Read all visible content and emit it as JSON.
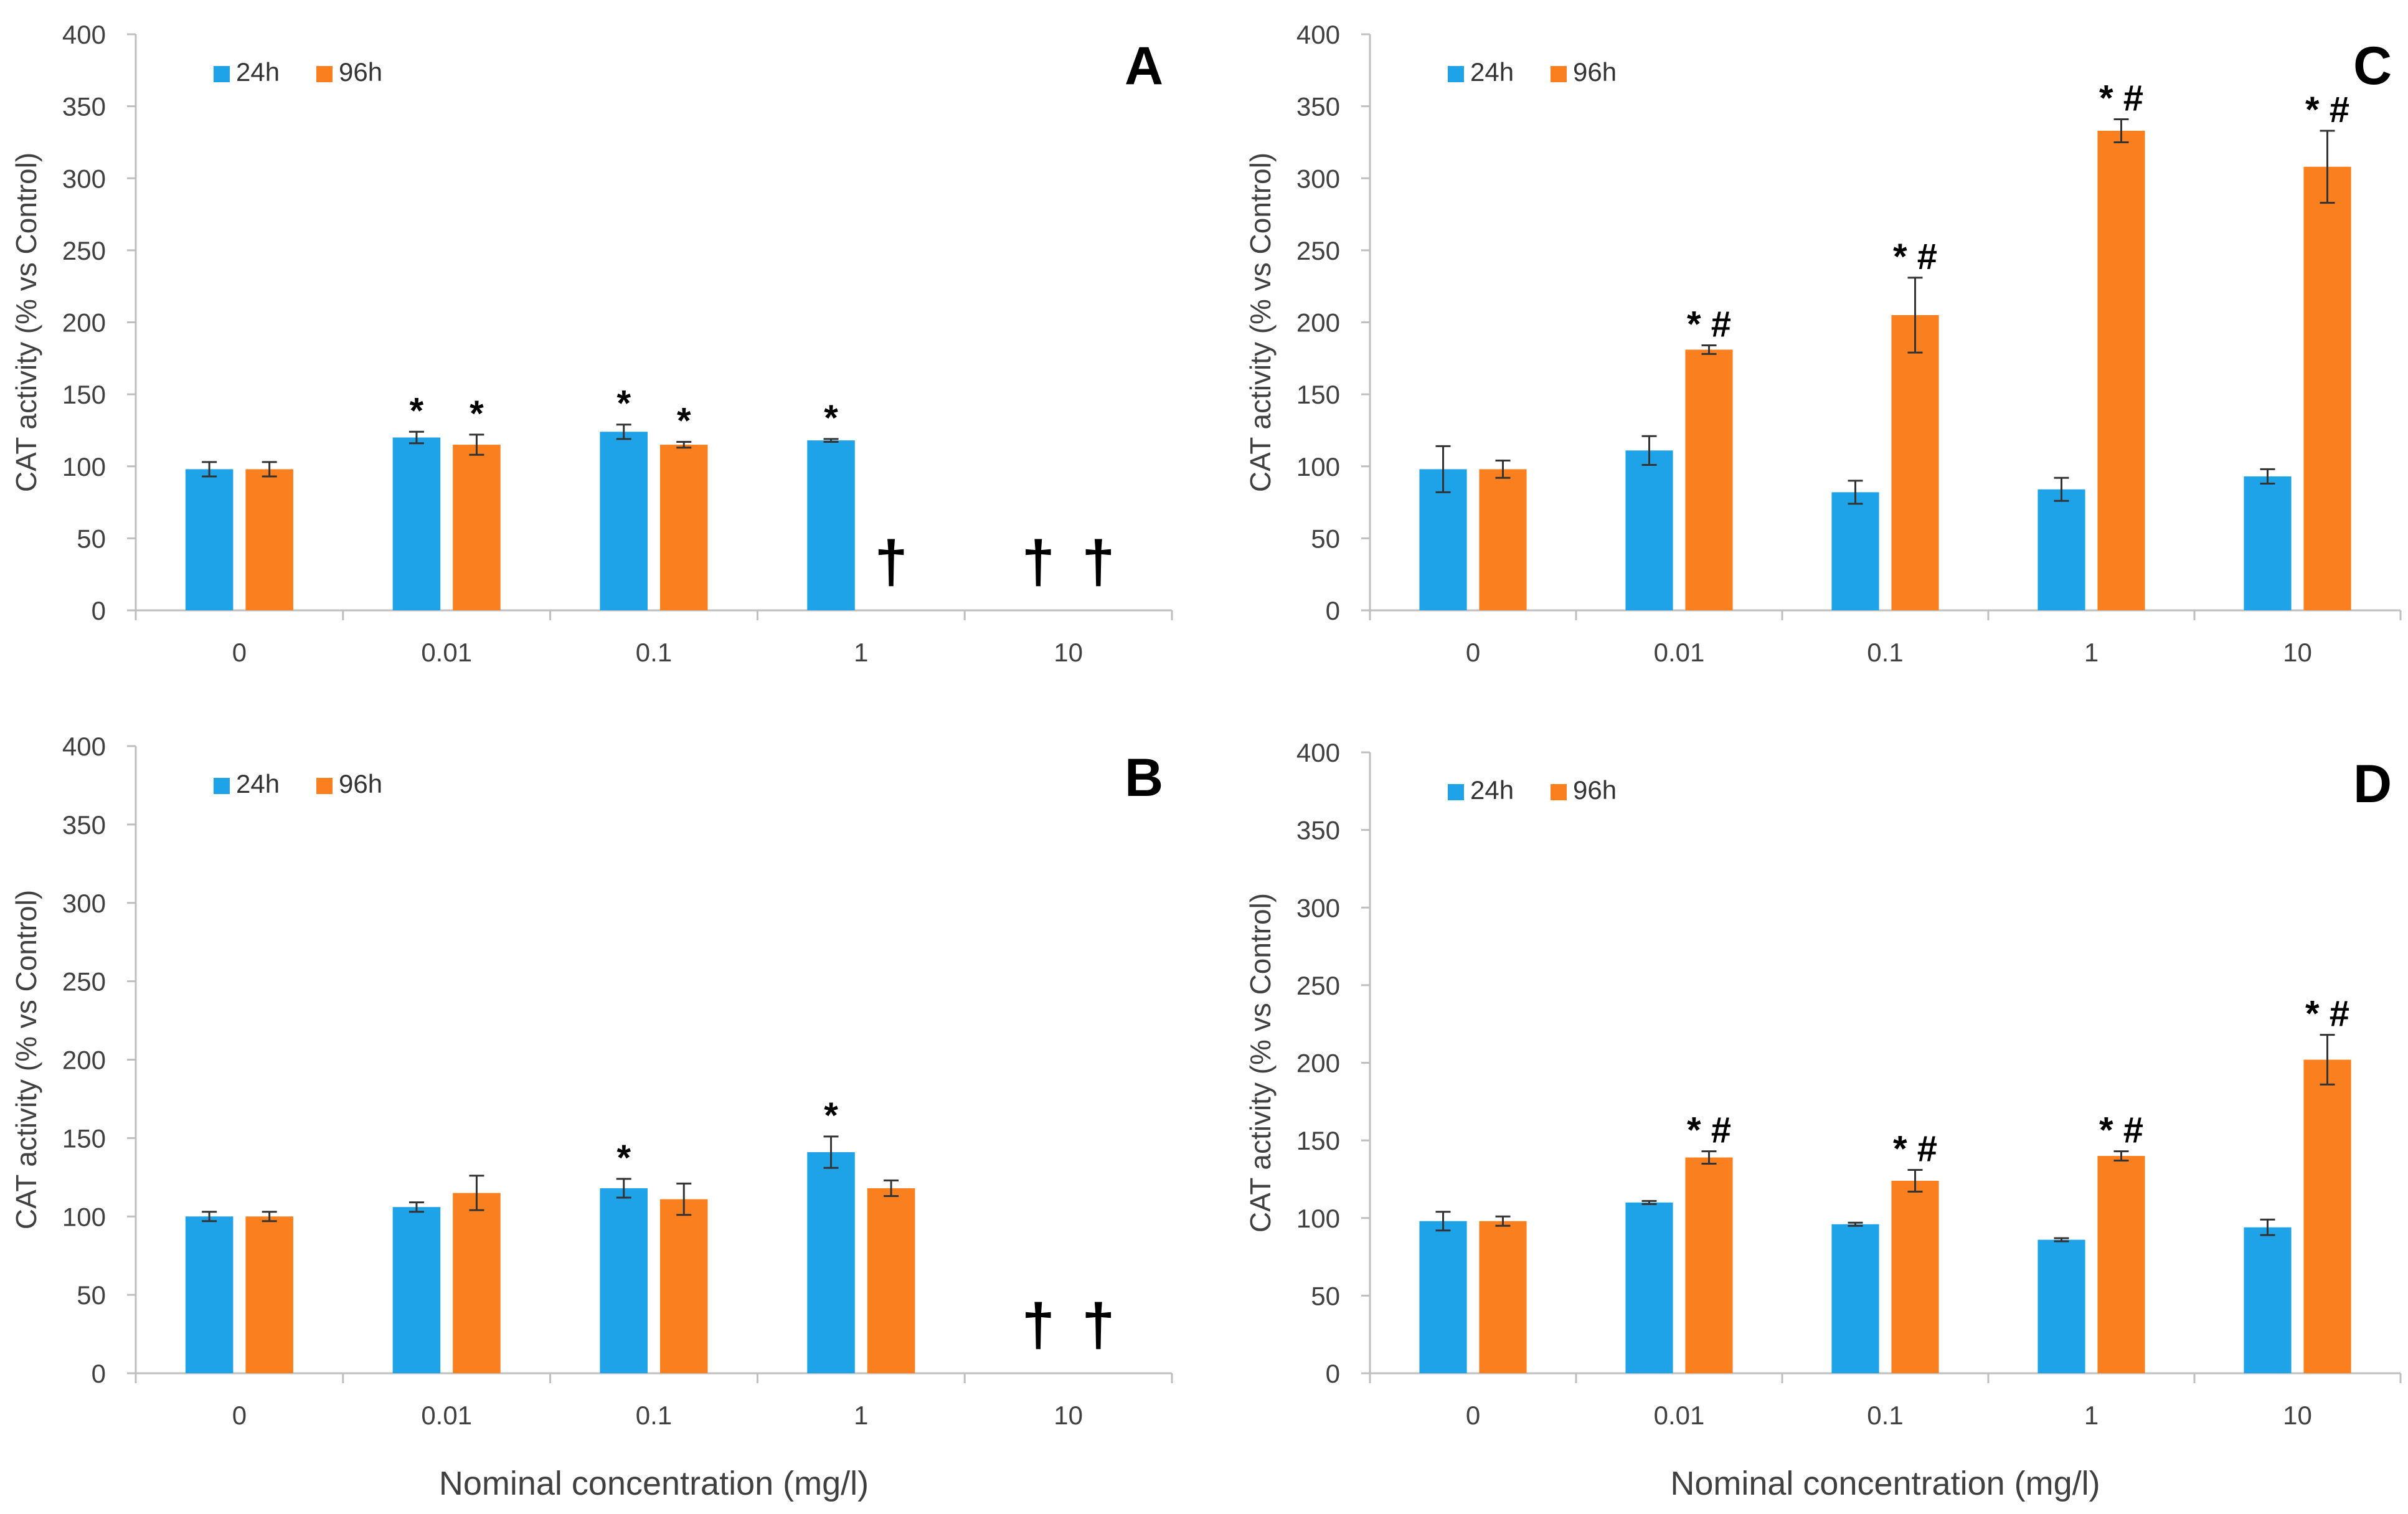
{
  "colors": {
    "series_24h": "#1FA3E8",
    "series_96h": "#FA7F1F",
    "axis": "#bfbfbf",
    "errorbar": "#333333"
  },
  "chart_data": [
    {
      "type": "bar",
      "panel": "A",
      "categories": [
        "0",
        "0.01",
        "0.1",
        "1",
        "10"
      ],
      "ylabel": "CAT activity (% vs Control)",
      "xlabel": "",
      "ylim": [
        0,
        400
      ],
      "yticks": [
        0,
        50,
        100,
        150,
        200,
        250,
        300,
        350,
        400
      ],
      "legend": "top-left",
      "series": [
        {
          "name": "24h",
          "values": [
            98,
            120,
            124,
            118,
            null
          ],
          "errors": [
            5,
            4,
            5,
            1,
            null
          ],
          "annotations": [
            "",
            "*",
            "*",
            "*",
            "†"
          ]
        },
        {
          "name": "96h",
          "values": [
            98,
            115,
            115,
            null,
            null
          ],
          "errors": [
            5,
            7,
            2,
            null,
            null
          ],
          "annotations": [
            "",
            "*",
            "*",
            "†",
            "†"
          ]
        }
      ]
    },
    {
      "type": "bar",
      "panel": "B",
      "categories": [
        "0",
        "0.01",
        "0.1",
        "1",
        "10"
      ],
      "ylabel": "CAT activity (% vs Control)",
      "xlabel": "Nominal concentration (mg/l)",
      "ylim": [
        0,
        400
      ],
      "yticks": [
        0,
        50,
        100,
        150,
        200,
        250,
        300,
        350,
        400
      ],
      "legend": "top-left",
      "series": [
        {
          "name": "24h",
          "values": [
            100,
            106,
            118,
            141,
            null
          ],
          "errors": [
            3,
            3,
            6,
            10,
            null
          ],
          "annotations": [
            "",
            "",
            "*",
            "*",
            "†"
          ]
        },
        {
          "name": "96h",
          "values": [
            100,
            115,
            111,
            118,
            null
          ],
          "errors": [
            3,
            11,
            10,
            5,
            null
          ],
          "annotations": [
            "",
            "",
            "",
            "",
            "†"
          ]
        }
      ]
    },
    {
      "type": "bar",
      "panel": "C",
      "categories": [
        "0",
        "0.01",
        "0.1",
        "1",
        "10"
      ],
      "ylabel": "CAT activity (% vs Control)",
      "xlabel": "",
      "ylim": [
        0,
        400
      ],
      "yticks": [
        0,
        50,
        100,
        150,
        200,
        250,
        300,
        350,
        400
      ],
      "legend": "top-left",
      "series": [
        {
          "name": "24h",
          "values": [
            98,
            111,
            82,
            84,
            93
          ],
          "errors": [
            16,
            10,
            8,
            8,
            5
          ],
          "annotations": [
            "",
            "",
            "",
            "",
            ""
          ]
        },
        {
          "name": "96h",
          "values": [
            98,
            181,
            205,
            333,
            308
          ],
          "errors": [
            6,
            3,
            26,
            8,
            25
          ],
          "annotations": [
            "",
            "* #",
            "* #",
            "* #",
            "* #"
          ]
        }
      ]
    },
    {
      "type": "bar",
      "panel": "D",
      "categories": [
        "0",
        "0.01",
        "0.1",
        "1",
        "10"
      ],
      "ylabel": "CAT activity (% vs Control)",
      "xlabel": "Nominal concentration (mg/l)",
      "ylim": [
        0,
        400
      ],
      "yticks": [
        0,
        50,
        100,
        150,
        200,
        250,
        300,
        350,
        400
      ],
      "legend": "top-left",
      "series": [
        {
          "name": "24h",
          "values": [
            98,
            110,
            96,
            86,
            94
          ],
          "errors": [
            6,
            1,
            1,
            1,
            5
          ],
          "annotations": [
            "",
            "",
            "",
            "",
            ""
          ]
        },
        {
          "name": "96h",
          "values": [
            98,
            139,
            124,
            140,
            202
          ],
          "errors": [
            3,
            4,
            7,
            3,
            16
          ],
          "annotations": [
            "",
            "* #",
            "* #",
            "* #",
            "* #"
          ]
        }
      ]
    }
  ]
}
